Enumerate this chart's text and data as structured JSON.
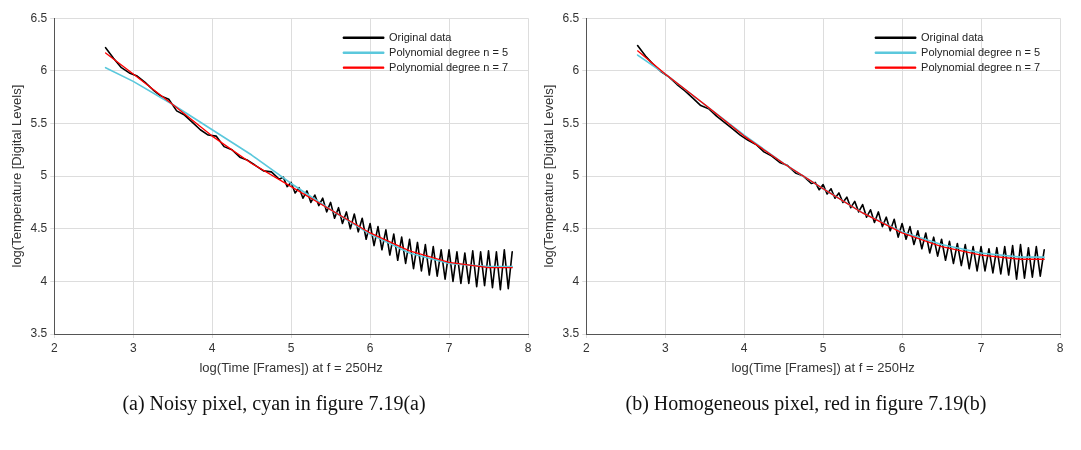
{
  "chart_data": [
    {
      "type": "line",
      "xlabel": "log(Time [Frames]) at f = 250Hz",
      "ylabel": "log(Temperature [Digital Levels]",
      "annotations": [
        "(a) Noisy pixel, cyan in figure 7.19(a)"
      ],
      "xlim": [
        2,
        8
      ],
      "xticks": [
        2,
        3,
        4,
        5,
        6,
        7,
        8
      ],
      "ylim": [
        3.5,
        6.5
      ],
      "yticks": [
        3.5,
        4,
        4.5,
        5,
        5.5,
        6,
        6.5
      ],
      "grid": true,
      "legend": "top right",
      "marker": "none",
      "line_style": "solid",
      "series": [
        {
          "name": "Original data",
          "color": "#000000",
          "x": [
            2.65,
            2.75,
            2.85,
            2.95,
            3.05,
            3.15,
            3.25,
            3.35,
            3.45,
            3.55,
            3.65,
            3.75,
            3.85,
            3.95,
            4.05,
            4.15,
            4.25,
            4.35,
            4.45,
            4.55,
            4.65,
            4.75,
            4.85,
            4.9,
            4.95,
            5.0,
            5.05,
            5.1,
            5.15,
            5.2,
            5.25,
            5.3,
            5.35,
            5.4,
            5.45,
            5.5,
            5.55,
            5.6,
            5.65,
            5.7,
            5.75,
            5.8,
            5.85,
            5.9,
            5.95,
            6.0,
            6.05,
            6.1,
            6.15,
            6.2,
            6.25,
            6.3,
            6.35,
            6.4,
            6.45,
            6.5,
            6.55,
            6.6,
            6.65,
            6.7,
            6.75,
            6.8,
            6.85,
            6.9,
            6.95,
            7.0,
            7.05,
            7.1,
            7.15,
            7.2,
            7.25,
            7.3,
            7.35,
            7.4,
            7.45,
            7.5,
            7.55,
            7.6,
            7.65,
            7.7,
            7.75,
            7.8
          ],
          "values": [
            6.22,
            6.12,
            6.03,
            5.98,
            5.95,
            5.89,
            5.82,
            5.76,
            5.73,
            5.62,
            5.58,
            5.51,
            5.44,
            5.39,
            5.38,
            5.28,
            5.25,
            5.18,
            5.15,
            5.1,
            5.05,
            5.04,
            4.97,
            4.99,
            4.9,
            4.94,
            4.84,
            4.89,
            4.79,
            4.86,
            4.75,
            4.82,
            4.72,
            4.79,
            4.66,
            4.75,
            4.6,
            4.7,
            4.55,
            4.66,
            4.5,
            4.64,
            4.47,
            4.6,
            4.4,
            4.55,
            4.34,
            4.52,
            4.3,
            4.49,
            4.25,
            4.45,
            4.2,
            4.42,
            4.17,
            4.4,
            4.12,
            4.37,
            4.1,
            4.35,
            4.06,
            4.33,
            4.05,
            4.3,
            4.02,
            4.3,
            4.0,
            4.28,
            3.98,
            4.27,
            3.98,
            4.29,
            3.95,
            4.28,
            3.96,
            4.29,
            3.94,
            4.28,
            3.92,
            4.3,
            3.93,
            4.28
          ]
        },
        {
          "name": "Polynomial degree n = 5",
          "color": "#5bc8dc",
          "x": [
            2.65,
            3,
            3.5,
            4,
            4.5,
            5,
            5.5,
            6,
            6.5,
            7,
            7.5,
            7.8
          ],
          "values": [
            6.03,
            5.9,
            5.68,
            5.44,
            5.2,
            4.93,
            4.68,
            4.45,
            4.27,
            4.17,
            4.14,
            4.14
          ]
        },
        {
          "name": "Polynomial degree n = 7",
          "color": "#ff0000",
          "x": [
            2.65,
            3,
            3.5,
            4,
            4.5,
            5,
            5.5,
            6,
            6.5,
            7,
            7.5,
            7.8
          ],
          "values": [
            6.17,
            5.97,
            5.68,
            5.38,
            5.12,
            4.9,
            4.68,
            4.46,
            4.29,
            4.18,
            4.13,
            4.13
          ]
        }
      ]
    },
    {
      "type": "line",
      "xlabel": "log(Time [Frames]) at f = 250Hz",
      "ylabel": "log(Temperature [Digital Levels]",
      "annotations": [
        "(b) Homogeneous pixel, red in figure 7.19(b)"
      ],
      "xlim": [
        2,
        8
      ],
      "xticks": [
        2,
        3,
        4,
        5,
        6,
        7,
        8
      ],
      "ylim": [
        3.5,
        6.5
      ],
      "yticks": [
        3.5,
        4,
        4.5,
        5,
        5.5,
        6,
        6.5
      ],
      "grid": true,
      "legend": "top right",
      "marker": "none",
      "line_style": "solid",
      "series": [
        {
          "name": "Original data",
          "color": "#000000",
          "x": [
            2.65,
            2.75,
            2.85,
            2.95,
            3.05,
            3.15,
            3.25,
            3.35,
            3.45,
            3.55,
            3.65,
            3.75,
            3.85,
            3.95,
            4.05,
            4.15,
            4.25,
            4.35,
            4.45,
            4.55,
            4.65,
            4.75,
            4.85,
            4.9,
            4.95,
            5.0,
            5.05,
            5.1,
            5.15,
            5.2,
            5.25,
            5.3,
            5.35,
            5.4,
            5.45,
            5.5,
            5.55,
            5.6,
            5.65,
            5.7,
            5.75,
            5.8,
            5.85,
            5.9,
            5.95,
            6.0,
            6.05,
            6.1,
            6.15,
            6.2,
            6.25,
            6.3,
            6.35,
            6.4,
            6.45,
            6.5,
            6.55,
            6.6,
            6.65,
            6.7,
            6.75,
            6.8,
            6.85,
            6.9,
            6.95,
            7.0,
            7.05,
            7.1,
            7.15,
            7.2,
            7.25,
            7.3,
            7.35,
            7.4,
            7.45,
            7.5,
            7.55,
            7.6,
            7.65,
            7.7,
            7.75,
            7.8
          ],
          "values": [
            6.24,
            6.14,
            6.06,
            5.99,
            5.94,
            5.87,
            5.81,
            5.74,
            5.67,
            5.64,
            5.57,
            5.51,
            5.45,
            5.39,
            5.34,
            5.3,
            5.23,
            5.19,
            5.13,
            5.1,
            5.03,
            5.0,
            4.93,
            4.94,
            4.87,
            4.92,
            4.83,
            4.88,
            4.79,
            4.84,
            4.75,
            4.8,
            4.7,
            4.76,
            4.66,
            4.73,
            4.61,
            4.68,
            4.56,
            4.66,
            4.52,
            4.61,
            4.48,
            4.59,
            4.42,
            4.55,
            4.4,
            4.52,
            4.35,
            4.48,
            4.31,
            4.46,
            4.27,
            4.42,
            4.24,
            4.4,
            4.2,
            4.38,
            4.17,
            4.36,
            4.15,
            4.35,
            4.12,
            4.33,
            4.1,
            4.33,
            4.1,
            4.31,
            4.08,
            4.32,
            4.07,
            4.33,
            4.06,
            4.34,
            4.02,
            4.35,
            4.03,
            4.32,
            4.04,
            4.33,
            4.05,
            4.3
          ]
        },
        {
          "name": "Polynomial degree n = 5",
          "color": "#5bc8dc",
          "x": [
            2.65,
            3,
            3.5,
            4,
            4.5,
            5,
            5.5,
            6,
            6.5,
            7,
            7.5,
            7.8
          ],
          "values": [
            6.15,
            5.97,
            5.68,
            5.39,
            5.12,
            4.88,
            4.65,
            4.47,
            4.35,
            4.27,
            4.23,
            4.23
          ]
        },
        {
          "name": "Polynomial degree n = 7",
          "color": "#ff0000",
          "x": [
            2.65,
            3,
            3.5,
            4,
            4.5,
            5,
            5.5,
            6,
            6.5,
            7,
            7.5,
            7.8
          ],
          "values": [
            6.19,
            5.97,
            5.68,
            5.38,
            5.12,
            4.88,
            4.65,
            4.46,
            4.33,
            4.25,
            4.21,
            4.21
          ]
        }
      ]
    }
  ]
}
